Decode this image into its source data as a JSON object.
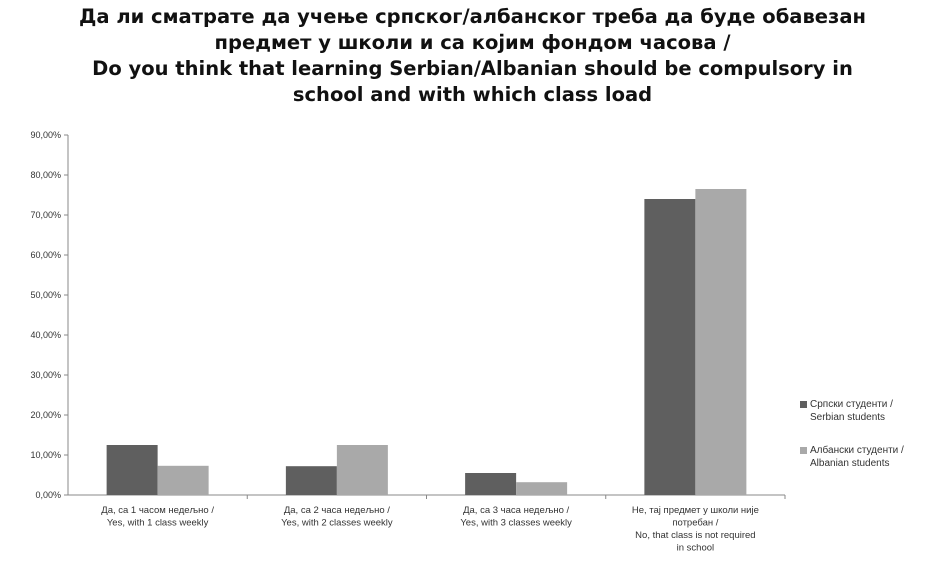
{
  "chart_data": {
    "type": "bar",
    "title_lines": [
      "Да ли сматрате да учење српског/албанског треба да буде обавезан",
      "предмет у школи и са којим фондом часова /",
      "Do you think that learning Serbian/Albanian should be compulsory in",
      "school and with which class load"
    ],
    "categories": [
      [
        "Да, са 1 часом недељно /",
        "Yes, with 1 class weekly"
      ],
      [
        "Да, са 2 часа недељно /",
        "Yes, with 2 classes weekly"
      ],
      [
        "Да, са 3 часа недељно /",
        "Yes, with 3 classes weekly"
      ],
      [
        "Не, тај предмет у школи није",
        "потребан /",
        "No, that class is not required",
        "in school"
      ]
    ],
    "series": [
      {
        "name_lines": [
          "Српски студенти /",
          "Serbian students"
        ],
        "color": "#5f5f5f",
        "values": [
          12.5,
          7.2,
          5.5,
          74.0
        ]
      },
      {
        "name_lines": [
          "Албански студенти /",
          "Albanian students"
        ],
        "color": "#a9a9a9",
        "values": [
          7.3,
          12.5,
          3.2,
          76.5
        ]
      }
    ],
    "yticks": [
      "0,00%",
      "10,00%",
      "20,00%",
      "30,00%",
      "40,00%",
      "50,00%",
      "60,00%",
      "70,00%",
      "80,00%",
      "90,00%"
    ],
    "ylim": [
      0,
      90
    ],
    "grid": false,
    "legend_position": "right",
    "axis_color": "#888888"
  }
}
